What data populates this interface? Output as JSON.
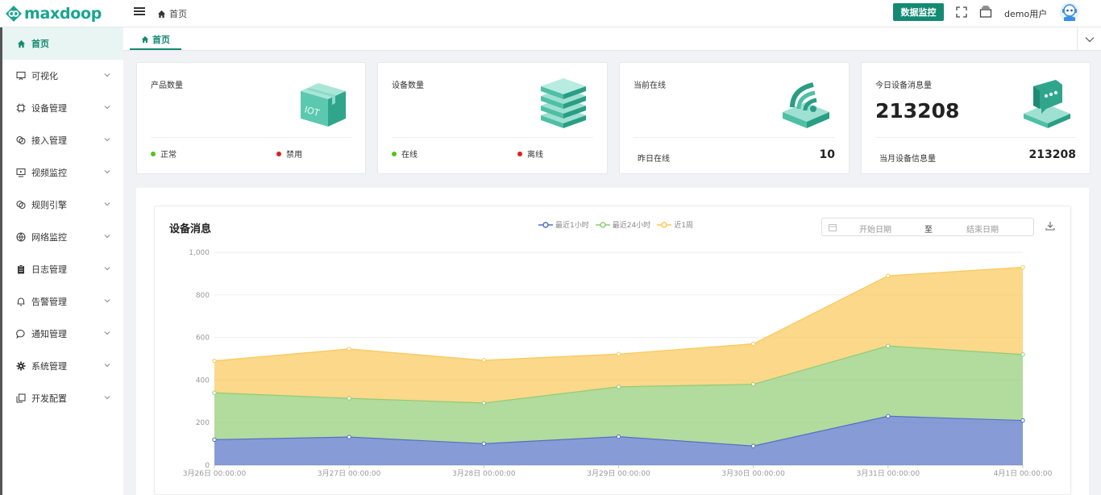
{
  "app": {
    "logo_text": "maxdoop"
  },
  "header": {
    "breadcrumb": "首页",
    "monitor_button": "数据监控",
    "username": "demo用户"
  },
  "sidebar": {
    "items": [
      {
        "label": "首页",
        "icon": "home-icon",
        "active": true,
        "has_children": false
      },
      {
        "label": "可视化",
        "icon": "monitor-icon",
        "has_children": true
      },
      {
        "label": "设备管理",
        "icon": "chip-icon",
        "has_children": true
      },
      {
        "label": "接入管理",
        "icon": "link-icon",
        "has_children": true
      },
      {
        "label": "视频监控",
        "icon": "video-icon",
        "has_children": true
      },
      {
        "label": "规则引擎",
        "icon": "rule-icon",
        "has_children": true
      },
      {
        "label": "网络监控",
        "icon": "globe-icon",
        "has_children": true
      },
      {
        "label": "日志管理",
        "icon": "clipboard-icon",
        "has_children": true
      },
      {
        "label": "告警管理",
        "icon": "bell-icon",
        "has_children": true
      },
      {
        "label": "通知管理",
        "icon": "chat-icon",
        "has_children": true
      },
      {
        "label": "系统管理",
        "icon": "gear-icon",
        "has_children": true
      },
      {
        "label": "开发配置",
        "icon": "copy-icon",
        "has_children": true
      }
    ]
  },
  "tabs": [
    {
      "label": "首页",
      "active": true
    }
  ],
  "cards": {
    "products": {
      "title": "产品数量",
      "status_a": "正常",
      "status_b": "禁用",
      "color_a": "#52c41a",
      "color_b": "#e02020",
      "icon": "iot-box-icon"
    },
    "devices": {
      "title": "设备数量",
      "status_a": "在线",
      "status_b": "离线",
      "color_a": "#52c41a",
      "color_b": "#e02020",
      "icon": "server-stack-icon"
    },
    "online": {
      "title": "当前在线",
      "foot_label": "昨日在线",
      "foot_value": "10",
      "icon": "wifi-router-icon"
    },
    "messages": {
      "title": "今日设备消息量",
      "value": "213208",
      "foot_label": "当月设备信息量",
      "foot_value": "213208",
      "icon": "chat-device-icon"
    }
  },
  "chart_panel": {
    "title": "设备消息",
    "legend": [
      "最近1小时",
      "最近24小时",
      "近1周"
    ],
    "date_start_placeholder": "开始日期",
    "date_sep": "至",
    "date_end_placeholder": "结束日期"
  },
  "chart_data": {
    "type": "area",
    "stacked": true,
    "categories": [
      "3月26日 00:00:00",
      "3月27日 00:00:00",
      "3月28日 00:00:00",
      "3月29日 00:00:00",
      "3月30日 00:00:00",
      "3月31日 00:00:00",
      "4月1日 00:00:00"
    ],
    "series": [
      {
        "name": "最近1小时",
        "color": "#5470c6",
        "values": [
          120,
          132,
          101,
          134,
          90,
          230,
          210
        ]
      },
      {
        "name": "最近24小时",
        "color": "#91cc75",
        "values": [
          220,
          182,
          191,
          234,
          290,
          330,
          310
        ]
      },
      {
        "name": "近1周",
        "color": "#fac858",
        "values": [
          150,
          232,
          201,
          154,
          190,
          330,
          410
        ]
      }
    ],
    "yticks": [
      "0",
      "200",
      "400",
      "600",
      "800",
      "1,000"
    ],
    "ylim": [
      0,
      1000
    ],
    "legend_position": "top-center",
    "grid": true
  }
}
